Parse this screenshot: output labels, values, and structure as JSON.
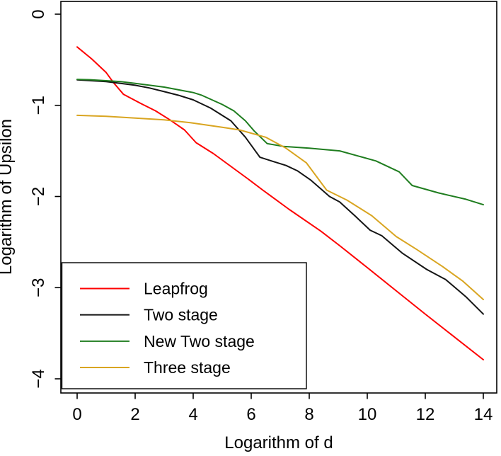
{
  "chart_data": {
    "type": "line",
    "title": "",
    "xlabel": "Logarithm of d",
    "ylabel": "Logarithm of Upsilon",
    "xlim": [
      0,
      14
    ],
    "ylim": [
      -4,
      0
    ],
    "grid": false,
    "box": true,
    "x_ticks": [
      0,
      2,
      4,
      6,
      8,
      10,
      12,
      14
    ],
    "x_tick_labels": [
      "0",
      "2",
      "4",
      "6",
      "8",
      "10",
      "12",
      "14"
    ],
    "y_ticks": [
      0,
      -1,
      -2,
      -3,
      -4
    ],
    "y_tick_labels": [
      "0",
      "−1",
      "−2",
      "−3",
      "−4"
    ],
    "legend": {
      "position": "bottom-left",
      "entries": [
        "Leapfrog",
        "Two stage",
        "New Two stage",
        "Three stage"
      ]
    },
    "series": [
      {
        "name": "Leapfrog",
        "color": "#fe0000",
        "points": [
          [
            0,
            -0.36
          ],
          [
            0.5,
            -0.49
          ],
          [
            1,
            -0.64
          ],
          [
            1.25,
            -0.75
          ],
          [
            1.6,
            -0.88
          ],
          [
            2.2,
            -0.98
          ],
          [
            2.7,
            -1.06
          ],
          [
            3.2,
            -1.16
          ],
          [
            3.7,
            -1.27
          ],
          [
            4.1,
            -1.41
          ],
          [
            4.7,
            -1.53
          ],
          [
            5.3,
            -1.67
          ],
          [
            5.9,
            -1.81
          ],
          [
            6.4,
            -1.93
          ],
          [
            7.3,
            -2.14
          ],
          [
            8.4,
            -2.38
          ],
          [
            9.05,
            -2.54
          ],
          [
            10,
            -2.78
          ],
          [
            10.9,
            -3.01
          ],
          [
            12,
            -3.29
          ],
          [
            13,
            -3.54
          ],
          [
            14,
            -3.79
          ]
        ]
      },
      {
        "name": "Two stage",
        "color": "#141414",
        "points": [
          [
            0,
            -0.72
          ],
          [
            0.5,
            -0.73
          ],
          [
            1,
            -0.74
          ],
          [
            1.5,
            -0.76
          ],
          [
            2,
            -0.78
          ],
          [
            2.5,
            -0.81
          ],
          [
            3,
            -0.85
          ],
          [
            3.5,
            -0.89
          ],
          [
            4,
            -0.94
          ],
          [
            4.6,
            -1.03
          ],
          [
            5.3,
            -1.17
          ],
          [
            5.8,
            -1.35
          ],
          [
            6.3,
            -1.57
          ],
          [
            6.7,
            -1.61
          ],
          [
            7.2,
            -1.66
          ],
          [
            7.6,
            -1.72
          ],
          [
            8.05,
            -1.82
          ],
          [
            8.7,
            -2.0
          ],
          [
            9.05,
            -2.06
          ],
          [
            9.6,
            -2.22
          ],
          [
            10.1,
            -2.37
          ],
          [
            10.5,
            -2.43
          ],
          [
            11.2,
            -2.62
          ],
          [
            12.05,
            -2.8
          ],
          [
            12.7,
            -2.91
          ],
          [
            13.4,
            -3.1
          ],
          [
            14,
            -3.29
          ]
        ]
      },
      {
        "name": "New Two stage",
        "color": "#1f7d1f",
        "points": [
          [
            0,
            -0.715
          ],
          [
            0.5,
            -0.72
          ],
          [
            1,
            -0.73
          ],
          [
            1.5,
            -0.74
          ],
          [
            2,
            -0.76
          ],
          [
            2.5,
            -0.78
          ],
          [
            3,
            -0.8
          ],
          [
            3.5,
            -0.83
          ],
          [
            4,
            -0.86
          ],
          [
            4.3,
            -0.89
          ],
          [
            5,
            -0.99
          ],
          [
            5.4,
            -1.06
          ],
          [
            5.8,
            -1.17
          ],
          [
            6.1,
            -1.28
          ],
          [
            6.55,
            -1.42
          ],
          [
            7.1,
            -1.45
          ],
          [
            8,
            -1.47
          ],
          [
            9.05,
            -1.5
          ],
          [
            10.3,
            -1.61
          ],
          [
            11.1,
            -1.73
          ],
          [
            11.55,
            -1.88
          ],
          [
            12.45,
            -1.96
          ],
          [
            13.4,
            -2.03
          ],
          [
            14,
            -2.09
          ]
        ]
      },
      {
        "name": "Three stage",
        "color": "#d9a521",
        "points": [
          [
            0,
            -1.11
          ],
          [
            1,
            -1.12
          ],
          [
            2,
            -1.14
          ],
          [
            3,
            -1.16
          ],
          [
            3.9,
            -1.19
          ],
          [
            5,
            -1.24
          ],
          [
            5.6,
            -1.27
          ],
          [
            6.5,
            -1.35
          ],
          [
            7.2,
            -1.47
          ],
          [
            7.9,
            -1.63
          ],
          [
            8.6,
            -1.93
          ],
          [
            9.3,
            -2.04
          ],
          [
            10.15,
            -2.21
          ],
          [
            11,
            -2.44
          ],
          [
            11.7,
            -2.58
          ],
          [
            12.6,
            -2.77
          ],
          [
            13.3,
            -2.93
          ],
          [
            14,
            -3.13
          ]
        ]
      }
    ]
  }
}
